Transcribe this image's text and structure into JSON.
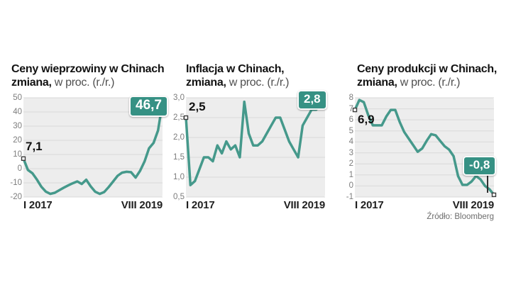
{
  "source_label": "Źródło: Bloomberg",
  "colors": {
    "line": "#45998b",
    "badge_bg": "#369184",
    "badge_text": "#ffffff",
    "plot_bg": "#ededed",
    "gridline": "#d9d9d9",
    "tick_text": "#7c7c7c",
    "marker_stroke": "#3c3c3c"
  },
  "chart_data": [
    {
      "type": "line",
      "title_line1": "Ceny wieprzowiny w Chinach",
      "title_line2_bold": "zmiana,",
      "title_line2_rest": "w proc. (r./r.)",
      "frequency": "monthly",
      "x_left": "I 2017",
      "x_right": "VIII 2019",
      "start_label": "7,1",
      "end_badge": "46,7",
      "y_ticks": [
        "50",
        "40",
        "30",
        "20",
        "10",
        "0",
        "-10",
        "-20"
      ],
      "ylim": [
        -20,
        50
      ],
      "grid": true,
      "legend": "none",
      "values": [
        7.1,
        -0.9,
        -3.2,
        -7.7,
        -12.8,
        -16.2,
        -17.8,
        -17.0,
        -15.2,
        -13.4,
        -11.8,
        -10.3,
        -9.0,
        -10.8,
        -7.8,
        -12.5,
        -16.3,
        -17.8,
        -16.5,
        -13.0,
        -9.0,
        -5.0,
        -2.8,
        -2.2,
        -2.5,
        -6.3,
        -1.5,
        5.1,
        14.4,
        18.2,
        27.0,
        46.7
      ],
      "end_marker": false
    },
    {
      "type": "line",
      "title_line1": "Inflacja w Chinach,",
      "title_line2_bold": "zmiana,",
      "title_line2_rest": "w proc. (r./r.)",
      "frequency": "monthly",
      "x_left": "I 2017",
      "x_right": "VIII 2019",
      "start_label": "2,5",
      "end_badge": "2,8",
      "y_ticks": [
        "3,0",
        "2,5",
        "2,0",
        "1,5",
        "1,0",
        "0,5"
      ],
      "ylim": [
        0.5,
        3.0
      ],
      "grid": true,
      "legend": "none",
      "values": [
        2.5,
        0.8,
        0.9,
        1.2,
        1.5,
        1.5,
        1.4,
        1.8,
        1.6,
        1.9,
        1.7,
        1.8,
        1.5,
        2.9,
        2.1,
        1.8,
        1.8,
        1.9,
        2.1,
        2.3,
        2.5,
        2.5,
        2.2,
        1.9,
        1.7,
        1.5,
        2.3,
        2.5,
        2.7,
        2.7,
        2.8,
        2.8
      ],
      "end_marker": false
    },
    {
      "type": "line",
      "title_line1": "Ceny produkcji w Chinach,",
      "title_line2_bold": "zmiana,",
      "title_line2_rest": "w proc. (r./r.)",
      "frequency": "monthly",
      "x_left": "I 2017",
      "x_right": "VIII 2019",
      "start_label": "6,9",
      "end_badge": "-0,8",
      "y_ticks": [
        "8",
        "7",
        "6",
        "5",
        "4",
        "3",
        "2",
        "1",
        "0",
        "-1"
      ],
      "ylim": [
        -1,
        8
      ],
      "grid": true,
      "legend": "none",
      "values": [
        6.9,
        7.8,
        7.6,
        6.4,
        5.5,
        5.5,
        5.5,
        6.3,
        6.9,
        6.9,
        5.8,
        4.9,
        4.3,
        3.7,
        3.1,
        3.4,
        4.1,
        4.7,
        4.6,
        4.1,
        3.6,
        3.3,
        2.7,
        0.9,
        0.1,
        0.1,
        0.4,
        0.9,
        0.6,
        0.0,
        -0.3,
        -0.8
      ],
      "end_marker": true
    }
  ]
}
